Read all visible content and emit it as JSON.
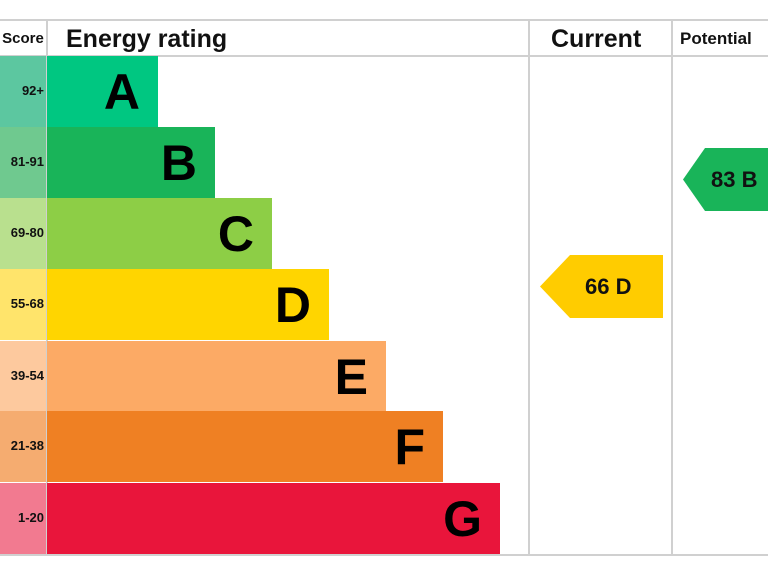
{
  "chart_data": {
    "type": "bar",
    "headers": {
      "score": "Score",
      "rating": "Energy rating",
      "current": "Current",
      "potential": "Potential"
    },
    "bands": [
      {
        "letter": "A",
        "range": "92+",
        "color": "#00c781",
        "score_color": "#5cc7a0"
      },
      {
        "letter": "B",
        "range": "81-91",
        "color": "#19b459",
        "score_color": "#6fc98f"
      },
      {
        "letter": "C",
        "range": "69-80",
        "color": "#8dce46",
        "score_color": "#b9e08e"
      },
      {
        "letter": "D",
        "range": "55-68",
        "color": "#ffd500",
        "score_color": "#ffe46b"
      },
      {
        "letter": "E",
        "range": "39-54",
        "color": "#fcaa65",
        "score_color": "#fdc99e"
      },
      {
        "letter": "F",
        "range": "21-38",
        "color": "#ef8023",
        "score_color": "#f5ac70"
      },
      {
        "letter": "G",
        "range": "1-20",
        "color": "#e9153b",
        "score_color": "#f27a90"
      }
    ],
    "current": {
      "value": 66,
      "band": "D",
      "label": "66 D",
      "color": "#ffcc00"
    },
    "potential": {
      "value": 83,
      "band": "B",
      "label": "83 B",
      "color": "#19b459"
    }
  }
}
